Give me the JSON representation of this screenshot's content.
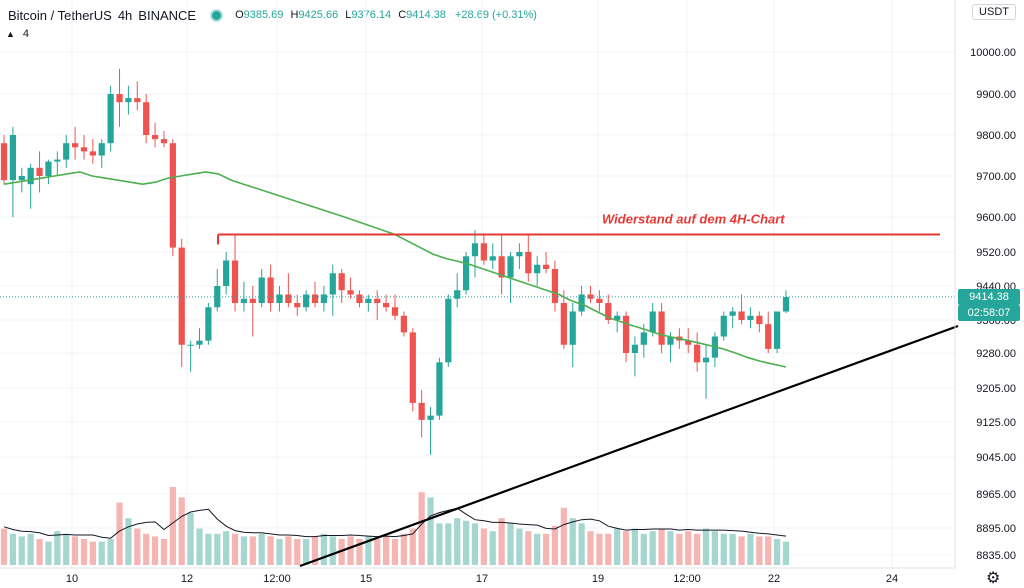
{
  "header": {
    "symbol": "Bitcoin / TetherUS",
    "interval": "4h",
    "exchange": "BINANCE",
    "open_label": "O",
    "open": "9385.69",
    "high_label": "H",
    "high": "9425.66",
    "low_label": "L",
    "low": "9376.14",
    "close_label": "C",
    "close": "9414.38",
    "change": "+28.69 (+0.31%)",
    "indicator_count": "4"
  },
  "currency": "USDT",
  "price_tags": {
    "last_price": "9414.38",
    "countdown": "02:58:07"
  },
  "colors": {
    "up": "#26a69a",
    "down": "#ef5350",
    "ma": "#4caf50",
    "resistance": "#e53935",
    "trendline": "#000000",
    "vol_up": "#a5d6d0",
    "vol_down": "#f5b5b3"
  },
  "chart_data": {
    "type": "candlestick",
    "y_ticks": [
      "10000.00",
      "9900.00",
      "9800.00",
      "9700.00",
      "9600.00",
      "9520.00",
      "9440.00",
      "9360.00",
      "9280.00",
      "9205.00",
      "9125.00",
      "9045.00",
      "8965.00",
      "8895.00",
      "8835.00"
    ],
    "x_ticks": [
      "10",
      "12",
      "12:00",
      "15",
      "17",
      "19",
      "12:00",
      "22",
      "24"
    ],
    "annotation": "Widerstand auf dem 4H-Chart",
    "resistance_level": 9560,
    "candles": [
      [
        9780,
        9800,
        9680,
        9690
      ],
      [
        9690,
        9820,
        9600,
        9800
      ],
      [
        9690,
        9720,
        9660,
        9700
      ],
      [
        9680,
        9730,
        9620,
        9720
      ],
      [
        9720,
        9760,
        9660,
        9700
      ],
      [
        9700,
        9740,
        9680,
        9735
      ],
      [
        9735,
        9760,
        9700,
        9740
      ],
      [
        9740,
        9800,
        9720,
        9780
      ],
      [
        9780,
        9820,
        9740,
        9770
      ],
      [
        9770,
        9800,
        9740,
        9760
      ],
      [
        9760,
        9790,
        9730,
        9750
      ],
      [
        9750,
        9790,
        9720,
        9780
      ],
      [
        9780,
        9920,
        9760,
        9900
      ],
      [
        9900,
        9960,
        9820,
        9880
      ],
      [
        9880,
        9920,
        9850,
        9890
      ],
      [
        9890,
        9930,
        9860,
        9880
      ],
      [
        9880,
        9900,
        9780,
        9800
      ],
      [
        9800,
        9830,
        9770,
        9790
      ],
      [
        9790,
        9810,
        9770,
        9780
      ],
      [
        9780,
        9790,
        9510,
        9530
      ],
      [
        9530,
        9550,
        9250,
        9300
      ],
      [
        9300,
        9310,
        9240,
        9300
      ],
      [
        9300,
        9340,
        9290,
        9310
      ],
      [
        9310,
        9400,
        9300,
        9390
      ],
      [
        9390,
        9480,
        9380,
        9440
      ],
      [
        9440,
        9520,
        9420,
        9500
      ],
      [
        9500,
        9560,
        9380,
        9400
      ],
      [
        9400,
        9450,
        9380,
        9410
      ],
      [
        9410,
        9440,
        9320,
        9400
      ],
      [
        9400,
        9480,
        9390,
        9460
      ],
      [
        9460,
        9490,
        9380,
        9400
      ],
      [
        9400,
        9440,
        9380,
        9420
      ],
      [
        9420,
        9470,
        9390,
        9400
      ],
      [
        9400,
        9420,
        9370,
        9390
      ],
      [
        9390,
        9430,
        9380,
        9420
      ],
      [
        9420,
        9450,
        9390,
        9400
      ],
      [
        9400,
        9440,
        9380,
        9420
      ],
      [
        9420,
        9490,
        9370,
        9470
      ],
      [
        9470,
        9480,
        9400,
        9430
      ],
      [
        9430,
        9460,
        9410,
        9420
      ],
      [
        9420,
        9430,
        9390,
        9400
      ],
      [
        9400,
        9420,
        9380,
        9410
      ],
      [
        9410,
        9430,
        9360,
        9400
      ],
      [
        9400,
        9420,
        9380,
        9390
      ],
      [
        9390,
        9420,
        9360,
        9370
      ],
      [
        9370,
        9380,
        9320,
        9330
      ],
      [
        9330,
        9340,
        9150,
        9170
      ],
      [
        9170,
        9200,
        9090,
        9130
      ],
      [
        9130,
        9160,
        9050,
        9140
      ],
      [
        9140,
        9270,
        9130,
        9260
      ],
      [
        9260,
        9420,
        9250,
        9410
      ],
      [
        9410,
        9470,
        9390,
        9430
      ],
      [
        9430,
        9520,
        9420,
        9510
      ],
      [
        9510,
        9570,
        9460,
        9540
      ],
      [
        9540,
        9560,
        9490,
        9500
      ],
      [
        9500,
        9540,
        9480,
        9510
      ],
      [
        9510,
        9560,
        9420,
        9460
      ],
      [
        9460,
        9520,
        9400,
        9510
      ],
      [
        9510,
        9540,
        9480,
        9520
      ],
      [
        9520,
        9560,
        9450,
        9470
      ],
      [
        9470,
        9510,
        9440,
        9490
      ],
      [
        9490,
        9520,
        9470,
        9480
      ],
      [
        9480,
        9500,
        9380,
        9400
      ],
      [
        9400,
        9430,
        9290,
        9300
      ],
      [
        9300,
        9400,
        9250,
        9380
      ],
      [
        9380,
        9440,
        9370,
        9420
      ],
      [
        9420,
        9440,
        9400,
        9410
      ],
      [
        9410,
        9430,
        9380,
        9400
      ],
      [
        9400,
        9420,
        9350,
        9360
      ],
      [
        9360,
        9380,
        9330,
        9370
      ],
      [
        9370,
        9380,
        9260,
        9280
      ],
      [
        9280,
        9320,
        9230,
        9300
      ],
      [
        9300,
        9350,
        9270,
        9330
      ],
      [
        9330,
        9400,
        9320,
        9380
      ],
      [
        9380,
        9400,
        9280,
        9300
      ],
      [
        9300,
        9330,
        9260,
        9320
      ],
      [
        9320,
        9340,
        9290,
        9310
      ],
      [
        9310,
        9340,
        9280,
        9300
      ],
      [
        9300,
        9330,
        9240,
        9260
      ],
      [
        9260,
        9300,
        9180,
        9270
      ],
      [
        9270,
        9330,
        9250,
        9320
      ],
      [
        9320,
        9380,
        9310,
        9370
      ],
      [
        9370,
        9390,
        9340,
        9380
      ],
      [
        9380,
        9420,
        9350,
        9360
      ],
      [
        9360,
        9390,
        9340,
        9370
      ],
      [
        9370,
        9380,
        9330,
        9350
      ],
      [
        9350,
        9380,
        9280,
        9290
      ],
      [
        9290,
        9380,
        9280,
        9380
      ],
      [
        9380,
        9430,
        9376,
        9414
      ]
    ],
    "ma": [
      9680,
      9685,
      9690,
      9695,
      9700,
      9705,
      9710,
      9700,
      9695,
      9690,
      9685,
      9680,
      9685,
      9695,
      9700,
      9705,
      9710,
      9705,
      9690,
      9680,
      9670,
      9660,
      9650,
      9640,
      9630,
      9620,
      9610,
      9600,
      9590,
      9580,
      9570,
      9560,
      9545,
      9530,
      9515,
      9505,
      9498,
      9490,
      9480,
      9470,
      9460,
      9450,
      9440,
      9430,
      9420,
      9405,
      9395,
      9380,
      9365,
      9355,
      9345,
      9335,
      9325,
      9318,
      9312,
      9305,
      9298,
      9290,
      9280,
      9270,
      9262,
      9256,
      9250
    ],
    "volume": [
      14,
      12,
      11,
      12,
      10,
      9,
      13,
      12,
      11,
      10,
      9,
      9,
      10,
      24,
      18,
      14,
      12,
      11,
      10,
      30,
      26,
      20,
      14,
      12,
      12,
      13,
      12,
      11,
      11,
      12,
      11,
      10,
      11,
      10,
      10,
      11,
      12,
      11,
      10,
      11,
      10,
      11,
      10,
      11,
      10,
      12,
      14,
      28,
      26,
      16,
      16,
      18,
      17,
      16,
      14,
      13,
      18,
      16,
      14,
      13,
      12,
      12,
      15,
      22,
      18,
      16,
      13,
      12,
      12,
      14,
      13,
      14,
      12,
      13,
      14,
      13,
      12,
      13,
      12,
      14,
      13,
      12,
      12,
      11,
      12,
      11,
      11,
      10,
      9
    ]
  }
}
